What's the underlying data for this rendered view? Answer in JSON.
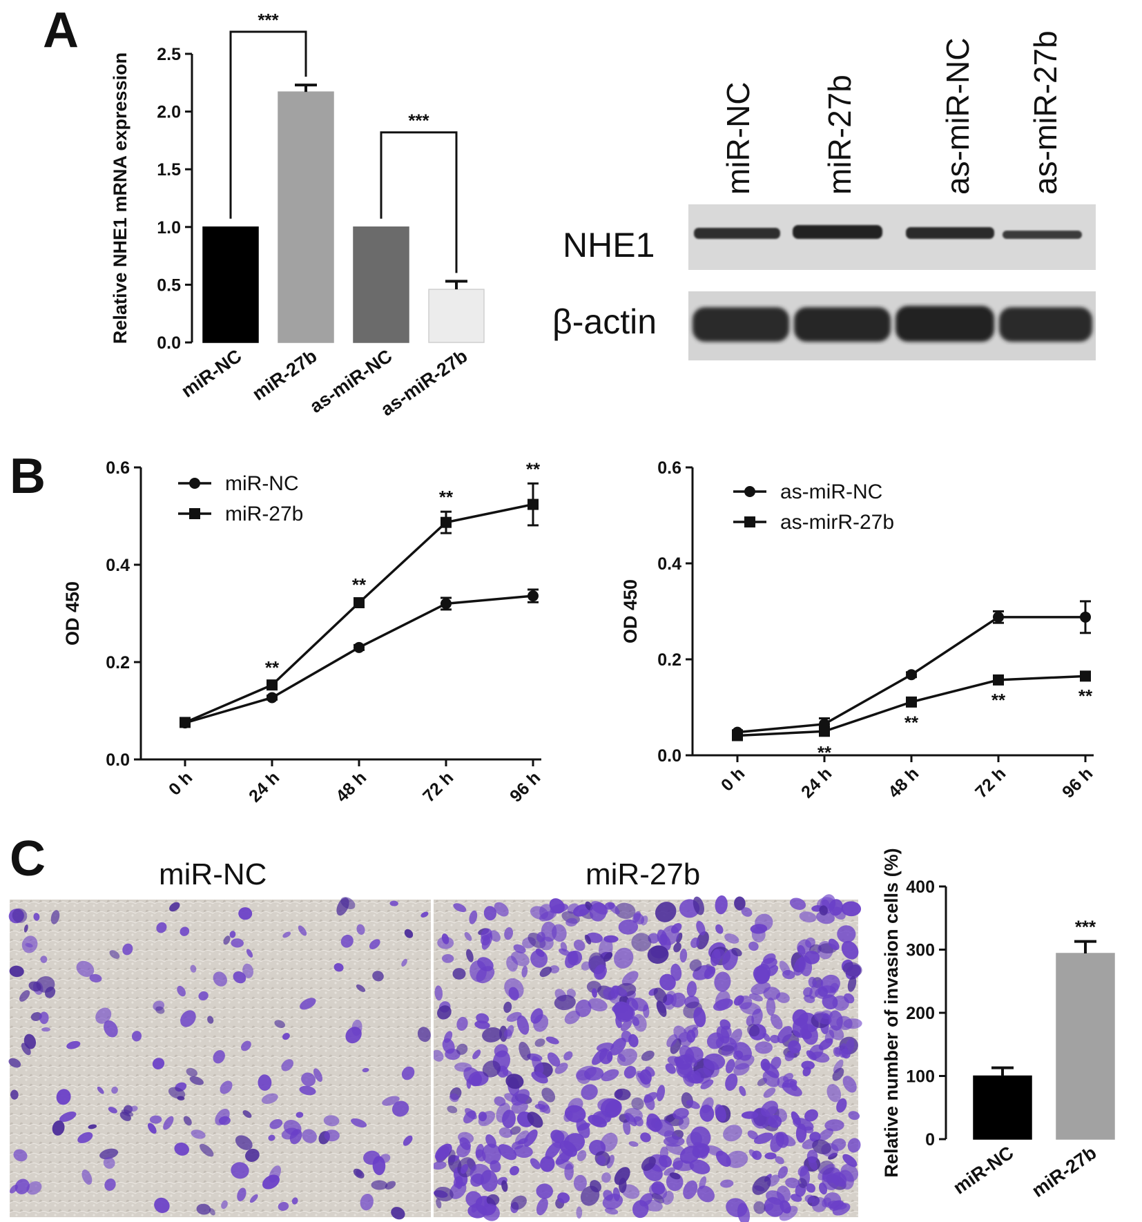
{
  "panels": {
    "a": "A",
    "b": "B",
    "c": "C"
  },
  "colors": {
    "black_bar": "#000000",
    "mid_gray_bar": "#a2a2a2",
    "dark_gray_bar": "#6b6b6b",
    "light_bar": "#ececec",
    "stain": "#6a3fc8",
    "membrane": "#d8d3cc"
  },
  "blot": {
    "lanes": [
      "miR-NC",
      "miR-27b",
      "as-miR-NC",
      "as-miR-27b"
    ],
    "rows": [
      "NHE1",
      "β-actin"
    ]
  },
  "images": {
    "left_title": "miR-NC",
    "right_title": "miR-27b"
  },
  "chart_data": [
    {
      "id": "A",
      "type": "bar",
      "ylabel": "Relative NHE1 mRNA expression",
      "xlabel": "",
      "ylim": [
        0,
        2.5
      ],
      "yticks": [
        0.0,
        0.5,
        1.0,
        1.5,
        2.0,
        2.5
      ],
      "ytick_labels": [
        "0.0",
        "0.5",
        "1.0",
        "1.5",
        "2.0",
        "2.5"
      ],
      "categories": [
        "miR-NC",
        "miR-27b",
        "as-miR-NC",
        "as-miR-27b"
      ],
      "values": [
        1.0,
        2.17,
        1.0,
        0.46
      ],
      "errors": [
        0,
        0.06,
        0,
        0.07
      ],
      "bar_colors": [
        "#000000",
        "#a2a2a2",
        "#6b6b6b",
        "#ececec"
      ],
      "significance": [
        {
          "from": 0,
          "to": 1,
          "label": "***"
        },
        {
          "from": 2,
          "to": 3,
          "label": "***"
        }
      ]
    },
    {
      "id": "B-left",
      "type": "line",
      "ylabel": "OD 450",
      "xlabel": "",
      "ylim": [
        0,
        0.6
      ],
      "yticks": [
        0.0,
        0.2,
        0.4,
        0.6
      ],
      "ytick_labels": [
        "0.0",
        "0.2",
        "0.4",
        "0.6"
      ],
      "x": [
        "0 h",
        "24 h",
        "48 h",
        "72 h",
        "96 h"
      ],
      "legend_position": "top-left",
      "series": [
        {
          "name": "miR-NC",
          "marker": "circle",
          "values": [
            0.075,
            0.127,
            0.23,
            0.32,
            0.336
          ],
          "errors": [
            0.004,
            0.004,
            0.005,
            0.012,
            0.013
          ]
        },
        {
          "name": "miR-27b",
          "marker": "square",
          "values": [
            0.076,
            0.153,
            0.322,
            0.487,
            0.524
          ],
          "errors": [
            0.005,
            0.006,
            0.007,
            0.022,
            0.043
          ]
        }
      ],
      "annotations": [
        {
          "x": "24 h",
          "label": "**",
          "position": "above"
        },
        {
          "x": "48 h",
          "label": "**",
          "position": "above"
        },
        {
          "x": "72 h",
          "label": "**",
          "position": "above"
        },
        {
          "x": "96 h",
          "label": "**",
          "position": "above"
        }
      ]
    },
    {
      "id": "B-right",
      "type": "line",
      "ylabel": "OD 450",
      "xlabel": "",
      "ylim": [
        0,
        0.6
      ],
      "yticks": [
        0.0,
        0.2,
        0.4,
        0.6
      ],
      "ytick_labels": [
        "0.0",
        "0.2",
        "0.4",
        "0.6"
      ],
      "x": [
        "0 h",
        "24 h",
        "48 h",
        "72 h",
        "96 h"
      ],
      "legend_position": "top-left",
      "series": [
        {
          "name": "as-miR-NC",
          "marker": "circle",
          "values": [
            0.048,
            0.065,
            0.168,
            0.288,
            0.288
          ],
          "errors": [
            0.004,
            0.012,
            0.005,
            0.012,
            0.033
          ]
        },
        {
          "name": "as-mirR-27b",
          "marker": "square",
          "values": [
            0.041,
            0.05,
            0.111,
            0.157,
            0.165
          ],
          "errors": [
            0.004,
            0.008,
            0.007,
            0.006,
            0.005
          ]
        }
      ],
      "annotations": [
        {
          "x": "24 h",
          "label": "**",
          "position": "below"
        },
        {
          "x": "48 h",
          "label": "**",
          "position": "below"
        },
        {
          "x": "72 h",
          "label": "**",
          "position": "below"
        },
        {
          "x": "96 h",
          "label": "**",
          "position": "below"
        }
      ]
    },
    {
      "id": "C",
      "type": "bar",
      "ylabel": "Relative number of invasion cells (%)",
      "xlabel": "",
      "ylim": [
        0,
        400
      ],
      "yticks": [
        0,
        100,
        200,
        300,
        400
      ],
      "ytick_labels": [
        "0",
        "100",
        "200",
        "300",
        "400"
      ],
      "categories": [
        "miR-NC",
        "miR-27b"
      ],
      "values": [
        100,
        294
      ],
      "errors": [
        13,
        19
      ],
      "bar_colors": [
        "#000000",
        "#a2a2a2"
      ],
      "significance": [
        {
          "on": 1,
          "label": "***"
        }
      ]
    }
  ]
}
